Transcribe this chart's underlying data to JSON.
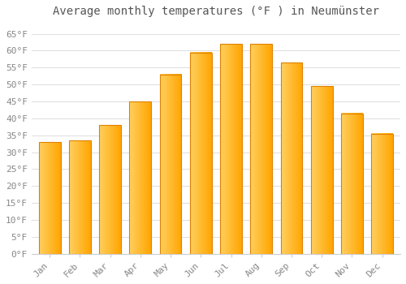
{
  "title": "Average monthly temperatures (°F ) in Neumünster",
  "months": [
    "Jan",
    "Feb",
    "Mar",
    "Apr",
    "May",
    "Jun",
    "Jul",
    "Aug",
    "Sep",
    "Oct",
    "Nov",
    "Dec"
  ],
  "values": [
    33,
    33.5,
    38,
    45,
    53,
    59.5,
    62,
    62,
    56.5,
    49.5,
    41.5,
    35.5
  ],
  "bar_color_main": "#FFA500",
  "bar_color_light": "#FFD060",
  "bar_color_edge": "#E08000",
  "background_color": "#FFFFFF",
  "grid_color": "#DDDDDD",
  "yticks": [
    0,
    5,
    10,
    15,
    20,
    25,
    30,
    35,
    40,
    45,
    50,
    55,
    60,
    65
  ],
  "ylim": [
    0,
    68
  ],
  "title_fontsize": 10,
  "tick_fontsize": 8,
  "font_family": "monospace"
}
